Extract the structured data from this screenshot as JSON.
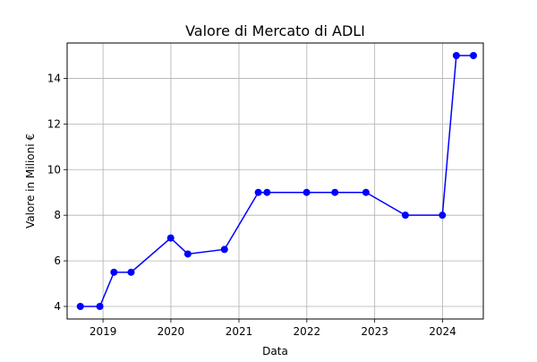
{
  "chart_data": {
    "type": "line",
    "title": "Valore di Mercato di ADLI",
    "xlabel": "Data",
    "ylabel": "Valore in Milioni €",
    "x_ticks": [
      "2019",
      "2020",
      "2021",
      "2022",
      "2023",
      "2024"
    ],
    "y_ticks": [
      "4",
      "6",
      "8",
      "10",
      "12",
      "14"
    ],
    "xlim": [
      "2018-06-22",
      "2024-08-07"
    ],
    "ylim": [
      3.45,
      15.55
    ],
    "grid": true,
    "series": [
      {
        "color": "#0000ff",
        "marker": "circle",
        "x": [
          "2018-09-01",
          "2018-12-15",
          "2019-03-01",
          "2019-06-01",
          "2019-12-31",
          "2020-04-01",
          "2020-10-15",
          "2021-04-15",
          "2021-06-01",
          "2021-12-31",
          "2022-06-01",
          "2022-11-15",
          "2023-06-15",
          "2023-12-31",
          "2024-03-15",
          "2024-06-15"
        ],
        "values": [
          4,
          4,
          5.5,
          5.5,
          7,
          6.3,
          6.5,
          9,
          9,
          9,
          9,
          9,
          8,
          8,
          15,
          15
        ]
      }
    ]
  }
}
